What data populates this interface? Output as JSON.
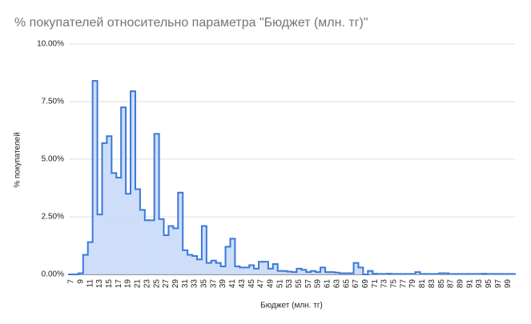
{
  "chart_data": {
    "type": "stepped-area",
    "title": "% покупателей относительно параметра \"Бюджет (млн. тг)\"",
    "x_label": "Бюджет (млн. тг)",
    "y_label": "% покупателей",
    "color": "#3c78d8",
    "categories": [
      "7",
      null,
      "9",
      null,
      "11",
      null,
      "13",
      null,
      "15",
      null,
      "17",
      null,
      "19",
      null,
      "21",
      null,
      "23",
      null,
      "25",
      null,
      "27",
      null,
      "29",
      null,
      "31",
      null,
      "33",
      null,
      "35",
      null,
      "37",
      null,
      "39",
      null,
      "41",
      null,
      "43",
      null,
      "45",
      null,
      "47",
      null,
      "49",
      null,
      "51",
      null,
      "53",
      null,
      "55",
      null,
      "57",
      null,
      "59",
      null,
      "61",
      null,
      "63",
      null,
      "65",
      null,
      "67",
      null,
      "69",
      null,
      "71",
      null,
      "73",
      null,
      "75",
      null,
      "77",
      null,
      "79",
      null,
      "81",
      null,
      "83",
      null,
      "85",
      null,
      "87",
      null,
      "89",
      null,
      "91",
      null,
      "93",
      null,
      "95",
      null,
      "97",
      null,
      "99",
      null
    ],
    "values": [
      0,
      0,
      0.05,
      0.85,
      1.4,
      8.4,
      2.6,
      5.7,
      6.0,
      4.4,
      4.2,
      7.25,
      3.5,
      7.95,
      3.7,
      2.8,
      2.35,
      2.35,
      6.1,
      2.4,
      1.7,
      2.1,
      2.0,
      3.55,
      1.05,
      0.85,
      0.8,
      0.65,
      2.1,
      0.5,
      0.6,
      0.5,
      0.35,
      1.2,
      1.55,
      0.35,
      0.3,
      0.3,
      0.4,
      0.25,
      0.55,
      0.55,
      0.25,
      0.45,
      0.15,
      0.15,
      0.12,
      0.1,
      0.25,
      0.2,
      0.1,
      0.15,
      0.1,
      0.3,
      0.1,
      0.1,
      0.08,
      0.05,
      0.05,
      0.05,
      0.5,
      0.3,
      0,
      0.15,
      0.03,
      0.02,
      0.02,
      0.03,
      0.02,
      0.02,
      0.02,
      0.02,
      0.02,
      0.1,
      0.02,
      0.02,
      0.02,
      0.02,
      0.05,
      0.05,
      0.02,
      0.02,
      0.02,
      0.02,
      0.02,
      0.02,
      0.02,
      0.03,
      0.02,
      0.02,
      0.02,
      0.02,
      0.02,
      0.02
    ],
    "ylim": [
      0,
      10
    ],
    "yticks": [
      {
        "value": 0,
        "label": "0.00%"
      },
      {
        "value": 2.5,
        "label": "2.50%"
      },
      {
        "value": 5,
        "label": "5.00%"
      },
      {
        "value": 7.5,
        "label": "7.50%"
      },
      {
        "value": 10,
        "label": "10.00%"
      }
    ],
    "grid": true
  }
}
